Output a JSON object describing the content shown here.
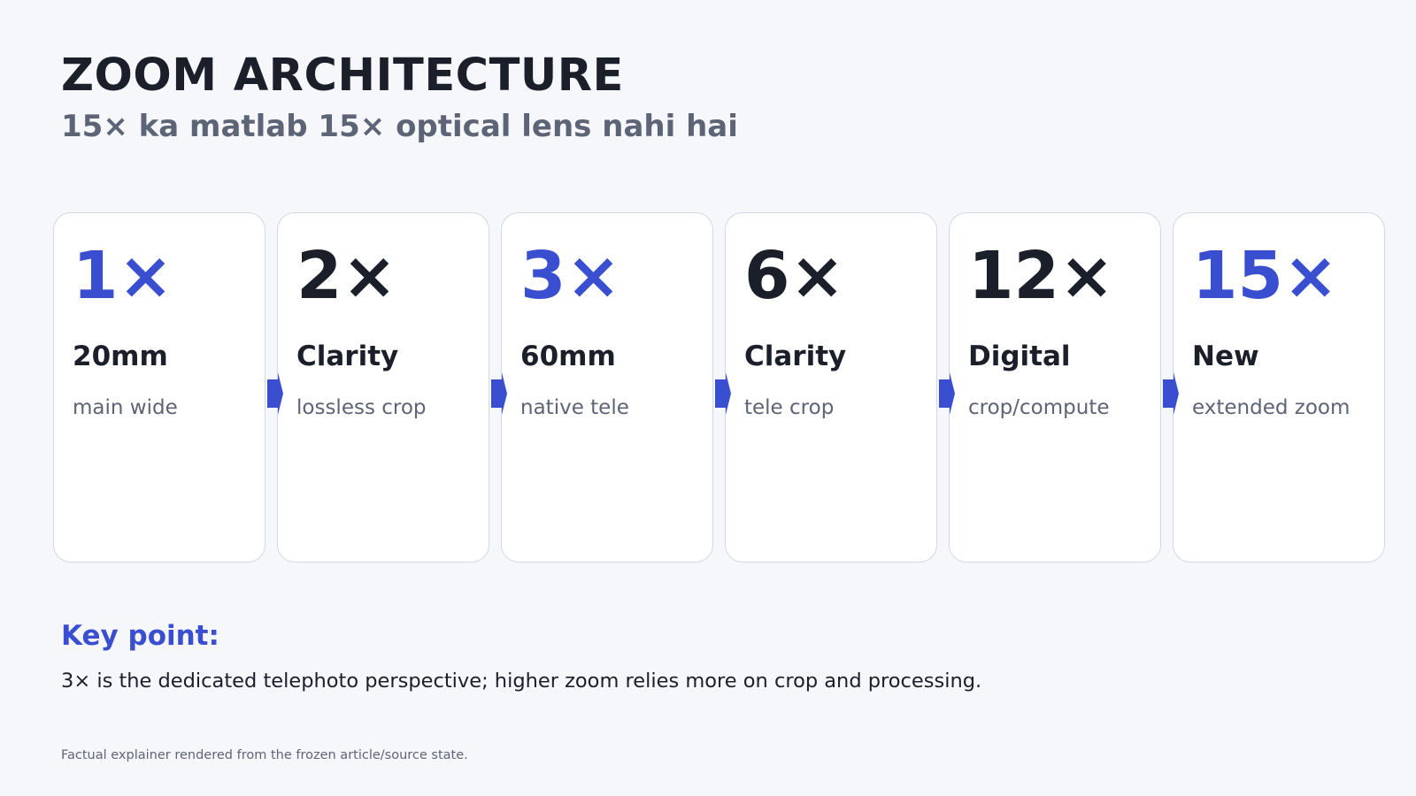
{
  "header": {
    "title": "ZOOM ARCHITECTURE",
    "subtitle": "15× ka matlab 15× optical lens nahi hai"
  },
  "steps": [
    {
      "zoom": "1×",
      "label": "20mm",
      "desc": "main wide",
      "accent": true
    },
    {
      "zoom": "2×",
      "label": "Clarity",
      "desc": "lossless crop",
      "accent": false
    },
    {
      "zoom": "3×",
      "label": "60mm",
      "desc": "native tele",
      "accent": true
    },
    {
      "zoom": "6×",
      "label": "Clarity",
      "desc": "tele crop",
      "accent": false
    },
    {
      "zoom": "12×",
      "label": "Digital",
      "desc": "crop/compute",
      "accent": false
    },
    {
      "zoom": "15×",
      "label": "New",
      "desc": "extended zoom",
      "accent": true
    }
  ],
  "key_point": {
    "label": "Key point:",
    "text": "3× is the dedicated telephoto perspective; higher zoom relies more on crop and processing."
  },
  "footnote": "Factual explainer rendered from the frozen article/source state.",
  "colors": {
    "accent": "#3a4fd0",
    "text": "#1b1f2a",
    "muted": "#5c6475",
    "background": "#f6f7fb",
    "card_border": "#d3d8e6"
  }
}
